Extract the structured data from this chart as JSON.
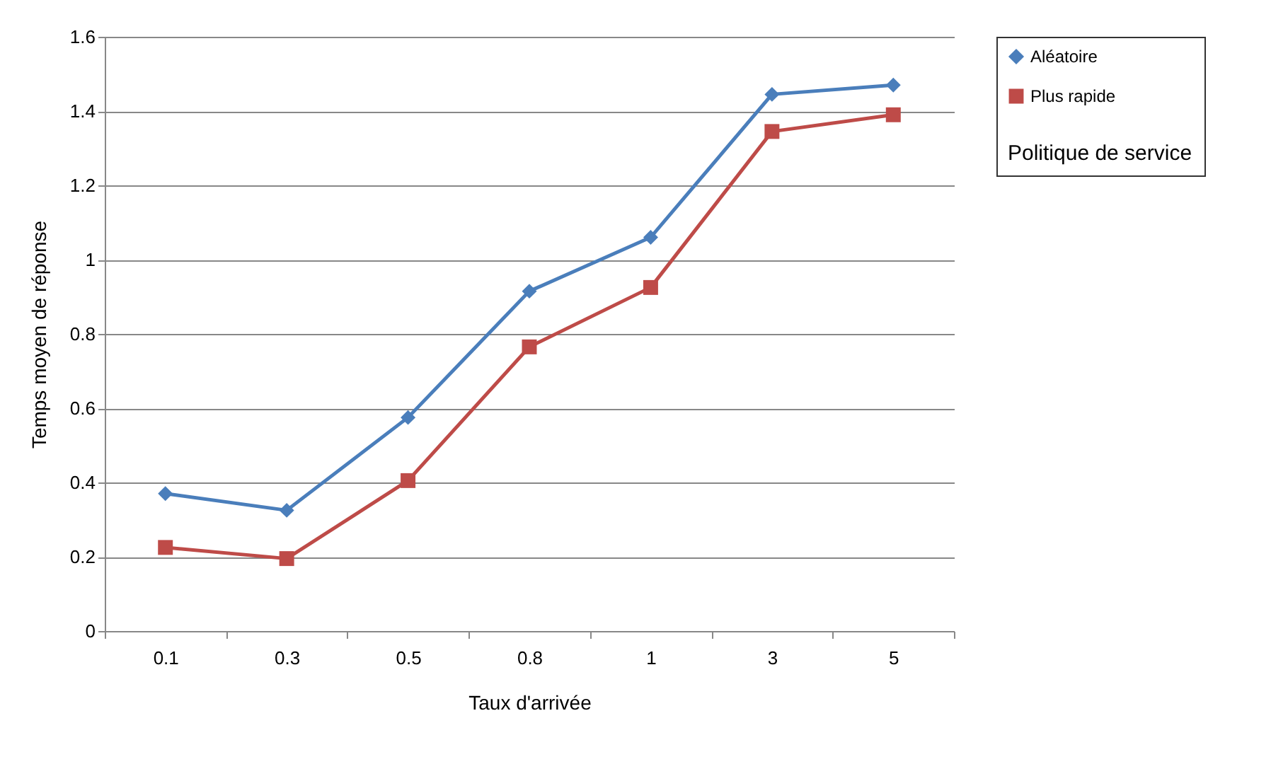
{
  "chart_data": {
    "type": "line",
    "xlabel": "Taux d'arrivée",
    "ylabel": "Temps moyen de réponse",
    "legend_title": "Politique de service",
    "categories": [
      "0.1",
      "0.3",
      "0.5",
      "0.8",
      "1",
      "3",
      "5"
    ],
    "series": [
      {
        "name": "Aléatoire",
        "color": "#4a7ebb",
        "marker": "diamond",
        "values": [
          0.37,
          0.325,
          0.575,
          0.915,
          1.06,
          1.445,
          1.47
        ]
      },
      {
        "name": "Plus rapide",
        "color": "#be4b48",
        "marker": "square",
        "values": [
          0.225,
          0.195,
          0.405,
          0.765,
          0.925,
          1.345,
          1.39
        ]
      }
    ],
    "ylim": [
      0,
      1.6
    ],
    "yticks": [
      0,
      0.2,
      0.4,
      0.6,
      0.8,
      1,
      1.2,
      1.4,
      1.6
    ],
    "grid": "y",
    "legend": "right",
    "line_style": "solid"
  }
}
